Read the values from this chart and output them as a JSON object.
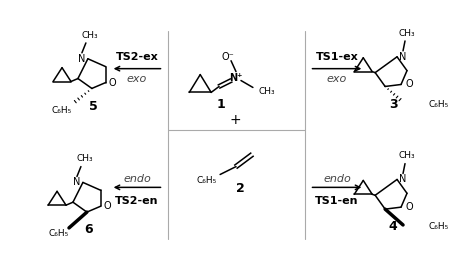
{
  "bg_color": "#ffffff",
  "line_color": "#000000",
  "gray_color": "#aaaaaa",
  "fig_width": 4.74,
  "fig_height": 2.58,
  "dpi": 100,
  "labels": {
    "TS2ex": "TS2-ex",
    "TS1ex": "TS1-ex",
    "TS2en": "TS2-en",
    "TS1en": "TS1-en",
    "exo_left": "exo",
    "endo_left": "endo",
    "exo_right": "exo",
    "endo_right": "endo",
    "n1": "1",
    "n2": "2",
    "n3": "3",
    "n4": "4",
    "n5": "5",
    "n6": "6",
    "plus": "+",
    "ch3": "CH₃",
    "ominus": "O⁻",
    "nplus": "N⁺",
    "c6h5": "C₆H₅",
    "N": "N",
    "O": "O"
  }
}
